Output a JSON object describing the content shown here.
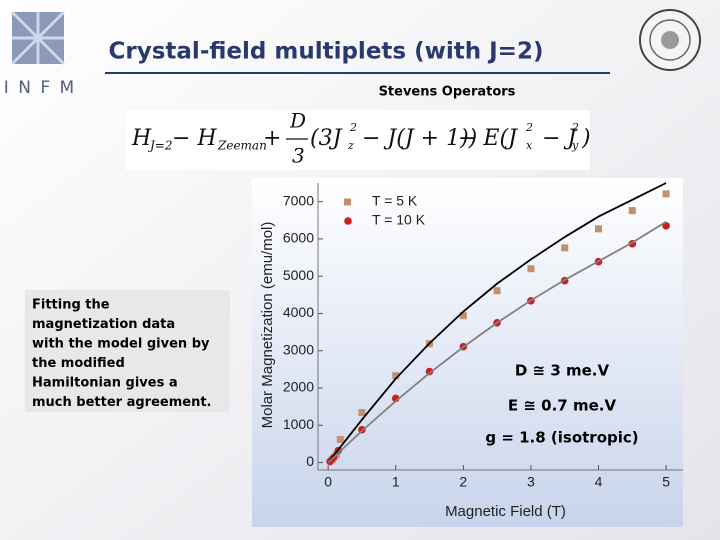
{
  "logo": "I N F M",
  "title": "Crystal-field multiplets (with J=2)",
  "subtitle": "Stevens Operators",
  "equation": [
    "H",
    "J=2",
    "− H",
    "Zeeman",
    "+",
    "D",
    "3",
    "(3J",
    "z",
    "2",
    "− J(J + 1))",
    "− E(J",
    "x",
    "2",
    "− J",
    "y",
    "2",
    ")"
  ],
  "text_box": [
    "Fitting the",
    "magnetization data",
    "with the model given by",
    "the modified",
    "Hamiltonian gives a",
    "much better agreement."
  ],
  "chart_data": {
    "type": "scatter",
    "xlabel": "Magnetic Field (T)",
    "ylabel": "Molar Magnetization (emu/mol)",
    "xlim": [
      -0.15,
      5.25
    ],
    "ylim": [
      -200,
      7500
    ],
    "xticks": [
      0,
      1,
      2,
      3,
      4,
      5
    ],
    "yticks": [
      0,
      1000,
      2000,
      3000,
      4000,
      5000,
      6000,
      7000
    ],
    "legend": "upper left",
    "series": [
      {
        "name": "T = 5 K",
        "color": "#c09070",
        "marker": "square",
        "x": [
          0.06,
          0.12,
          0.18,
          0.5,
          1.0,
          1.5,
          2.0,
          2.5,
          3.0,
          3.5,
          4.0,
          4.5,
          5.0
        ],
        "values": [
          80,
          210,
          620,
          1340,
          2330,
          3190,
          3940,
          4610,
          5200,
          5760,
          6270,
          6760,
          7210
        ]
      },
      {
        "name": "T = 10 K",
        "color": "#cc2020",
        "marker": "circle",
        "x": [
          0.03,
          0.08,
          0.15,
          0.5,
          1.0,
          1.5,
          2.0,
          2.5,
          3.0,
          3.5,
          4.0,
          4.5,
          5.0
        ],
        "values": [
          30,
          130,
          320,
          880,
          1720,
          2440,
          3110,
          3750,
          4340,
          4880,
          5390,
          5870,
          6350
        ]
      },
      {
        "color": "#000000",
        "marker": "line",
        "x": [
          0,
          0.5,
          1,
          1.5,
          2,
          2.5,
          3,
          3.5,
          4,
          4.5,
          5
        ],
        "values": [
          0,
          1150,
          2250,
          3200,
          4050,
          4800,
          5450,
          6050,
          6600,
          7050,
          7500
        ]
      },
      {
        "color": "#808080",
        "marker": "line",
        "x": [
          0,
          0.5,
          1,
          1.5,
          2,
          2.5,
          3,
          3.5,
          4,
          4.5,
          5
        ],
        "values": [
          0,
          850,
          1650,
          2400,
          3100,
          3750,
          4350,
          4900,
          5400,
          5900,
          6460
        ]
      }
    ],
    "annotations": [
      "D ≅ 3 me.V",
      "E ≅ 0.7 me.V",
      "g = 1.8 (isotropic)"
    ]
  }
}
